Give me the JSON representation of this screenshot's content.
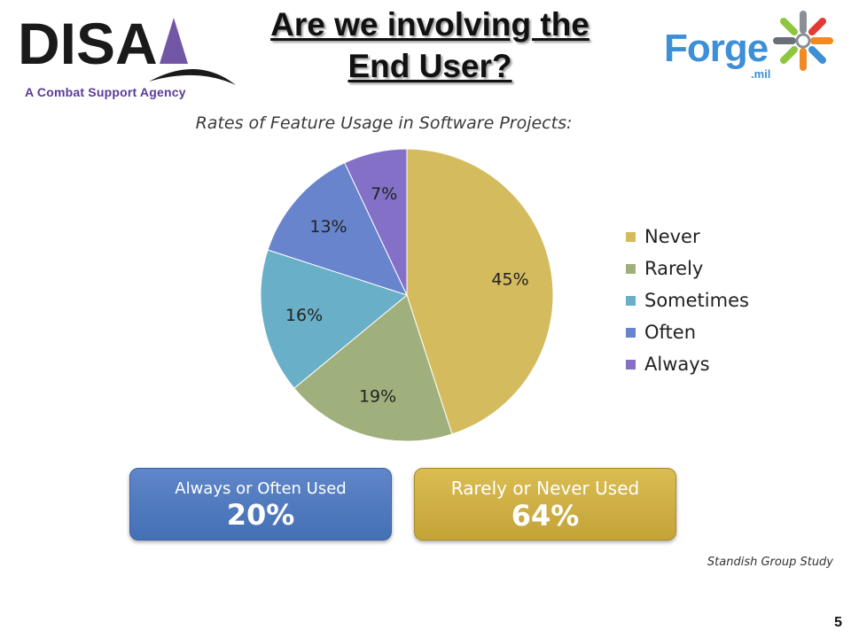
{
  "header": {
    "title_line1": "Are we involving the",
    "title_line2": "End User?",
    "left_logo": {
      "text": "DISA",
      "tagline": "A Combat Support Agency",
      "color": "#1a1a1a",
      "accent": "#5b3a98"
    },
    "right_logo": {
      "word": "Forge",
      "suffix": ".mil",
      "color": "#3d8fd6",
      "icon": "forge-asterisk-icon"
    }
  },
  "chart_data": {
    "type": "pie",
    "title": "Rates of Feature Usage in Software Projects:",
    "slices": [
      {
        "label": "Never",
        "value": 45,
        "display": "45%",
        "color": "#d4bb5e"
      },
      {
        "label": "Rarely",
        "value": 19,
        "display": "19%",
        "color": "#9fb07c"
      },
      {
        "label": "Sometimes",
        "value": 16,
        "display": "16%",
        "color": "#6aafc8"
      },
      {
        "label": "Often",
        "value": 13,
        "display": "13%",
        "color": "#6884cc"
      },
      {
        "label": "Always",
        "value": 7,
        "display": "7%",
        "color": "#8470c6"
      }
    ],
    "legend_placement": "right"
  },
  "summary": {
    "often": {
      "label": "Always or Often Used",
      "value": "20%",
      "color": "#4f78be"
    },
    "never": {
      "label": "Rarely or Never Used",
      "value": "64%",
      "color": "#cdae44"
    }
  },
  "footer": {
    "source": "Standish Group Study",
    "page_number": "5"
  }
}
